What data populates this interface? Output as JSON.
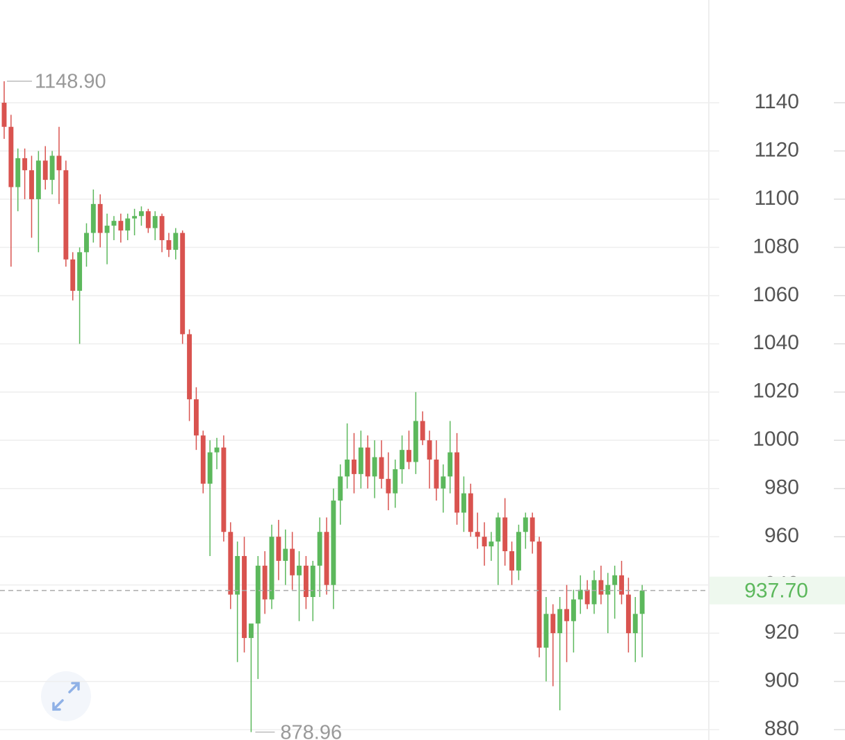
{
  "chart_data": {
    "type": "candlestick",
    "ylim": [
      875.7,
      1182.6
    ],
    "yticks": [
      880,
      900,
      920,
      940,
      960,
      980,
      1000,
      1020,
      1040,
      1060,
      1080,
      1100,
      1120,
      1140
    ],
    "grid": true,
    "up_color": "#5cb85c",
    "down_color": "#d9534f",
    "high_marker": {
      "value": 1148.9,
      "label": "1148.90"
    },
    "low_marker": 878.96,
    "last_price": {
      "value": 937.7,
      "label": "937.70"
    },
    "open": [
      1140,
      1130,
      1105,
      1117,
      1112,
      1100,
      1116,
      1108,
      1118,
      1112,
      1075,
      1062,
      1078,
      1086,
      1098,
      1086,
      1089,
      1091,
      1087,
      1092,
      1093,
      1095,
      1088,
      1093,
      1083,
      1079,
      1086,
      1044,
      1017,
      1002,
      982,
      995,
      997,
      962,
      936,
      952,
      918,
      924,
      948,
      934,
      960,
      950,
      955,
      944,
      948,
      935,
      948,
      962,
      940,
      975,
      985,
      992,
      986,
      997,
      985,
      993,
      984,
      978,
      988,
      996,
      991,
      1008,
      1000,
      992,
      980,
      985,
      995,
      970,
      978,
      962,
      960,
      956,
      958,
      968,
      954,
      946,
      962,
      968,
      958,
      914,
      928,
      920,
      930,
      925,
      934,
      938,
      932,
      942,
      936,
      940,
      944,
      936,
      920,
      928
    ],
    "high": [
      1148.9,
      1135,
      1121,
      1121,
      1118,
      1120,
      1122,
      1120,
      1130,
      1116,
      1078,
      1080,
      1090,
      1104,
      1102,
      1094,
      1093,
      1094,
      1094,
      1096,
      1097,
      1096,
      1095,
      1094,
      1086,
      1088,
      1087,
      1046,
      1022,
      1004,
      1000,
      1001,
      1002,
      966,
      958,
      960,
      922,
      952,
      954,
      965,
      967,
      963,
      962,
      954,
      952,
      950,
      968,
      968,
      980,
      990,
      1007,
      1003,
      1004,
      1002,
      1000,
      1000,
      995,
      992,
      1002,
      1004,
      1020,
      1012,
      1004,
      1000,
      990,
      1008,
      1003,
      985,
      982,
      970,
      966,
      962,
      970,
      976,
      958,
      965,
      970,
      970,
      960,
      935,
      932,
      935,
      940,
      938,
      944,
      942,
      946,
      948,
      945,
      948,
      950,
      943,
      935,
      940
    ],
    "low": [
      1125,
      1072,
      1095,
      1100,
      1084,
      1078,
      1104,
      1102,
      1098,
      1072,
      1058,
      1040,
      1072,
      1082,
      1080,
      1073,
      1083,
      1082,
      1083,
      1085,
      1089,
      1086,
      1083,
      1078,
      1076,
      1075,
      1040,
      1008,
      996,
      978,
      952,
      988,
      958,
      930,
      908,
      912,
      878.96,
      901,
      928,
      930,
      942,
      940,
      938,
      925,
      930,
      925,
      935,
      936,
      930,
      965,
      980,
      978,
      980,
      980,
      976,
      980,
      971,
      972,
      982,
      988,
      986,
      998,
      980,
      975,
      970,
      978,
      965,
      962,
      960,
      955,
      948,
      950,
      940,
      948,
      940,
      942,
      955,
      953,
      910,
      900,
      898,
      888,
      908,
      912,
      928,
      930,
      928,
      932,
      920,
      926,
      932,
      912,
      908,
      910
    ],
    "close": [
      1130,
      1105,
      1117,
      1112,
      1100,
      1116,
      1108,
      1118,
      1112,
      1075,
      1062,
      1078,
      1086,
      1098,
      1086,
      1089,
      1091,
      1087,
      1092,
      1093,
      1095,
      1088,
      1093,
      1083,
      1079,
      1086,
      1044,
      1017,
      1002,
      982,
      995,
      997,
      962,
      936,
      952,
      918,
      924,
      948,
      934,
      960,
      950,
      955,
      944,
      948,
      935,
      948,
      962,
      940,
      975,
      985,
      992,
      986,
      997,
      985,
      993,
      984,
      978,
      988,
      996,
      991,
      1008,
      1000,
      992,
      980,
      985,
      995,
      970,
      978,
      962,
      960,
      956,
      958,
      968,
      954,
      946,
      962,
      968,
      958,
      914,
      928,
      920,
      930,
      925,
      934,
      938,
      932,
      942,
      936,
      940,
      944,
      936,
      920,
      928,
      937.7
    ]
  }
}
